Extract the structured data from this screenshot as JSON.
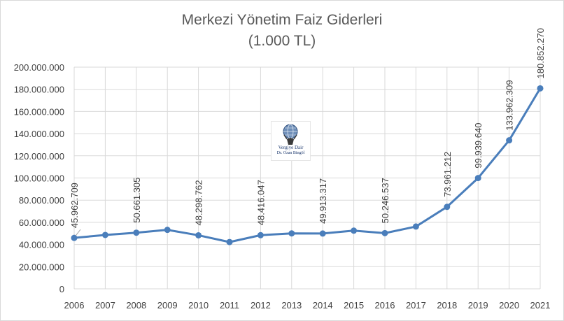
{
  "chart_data": {
    "type": "line",
    "title": "Merkezi Yönetim Faiz Giderleri",
    "subtitle": "(1.000 TL)",
    "x": [
      "2006",
      "2007",
      "2008",
      "2009",
      "2010",
      "2011",
      "2012",
      "2013",
      "2014",
      "2015",
      "2016",
      "2017",
      "2018",
      "2019",
      "2020",
      "2021"
    ],
    "values": [
      45962709,
      48600000,
      50661305,
      53200000,
      48298762,
      42200000,
      48416047,
      50000000,
      49913317,
      52500000,
      50246537,
      56200000,
      73961212,
      99939640,
      133962309,
      180852270
    ],
    "data_labels": [
      "45.962.709",
      "",
      "50.661.305",
      "",
      "48.298.762",
      "",
      "48.416.047",
      "",
      "49.913.317",
      "",
      "50.246.537",
      "",
      "73.961.212",
      "99.939.640",
      "133.962.309",
      "180.852.270"
    ],
    "yticks": [
      "0",
      "20.000.000",
      "40.000.000",
      "60.000.000",
      "80.000.000",
      "100.000.000",
      "120.000.000",
      "140.000.000",
      "160.000.000",
      "180.000.000",
      "200.000.000"
    ],
    "ylim": [
      0,
      200000000
    ],
    "grid": true,
    "legend": "none",
    "line_color": "#4a7ebb",
    "grid_color": "#d9d9d9"
  },
  "watermark": {
    "line1": "Vergiye Dair",
    "line2": "Dr. Ozan Bingöl",
    "icon": "atlas-globe-icon"
  }
}
